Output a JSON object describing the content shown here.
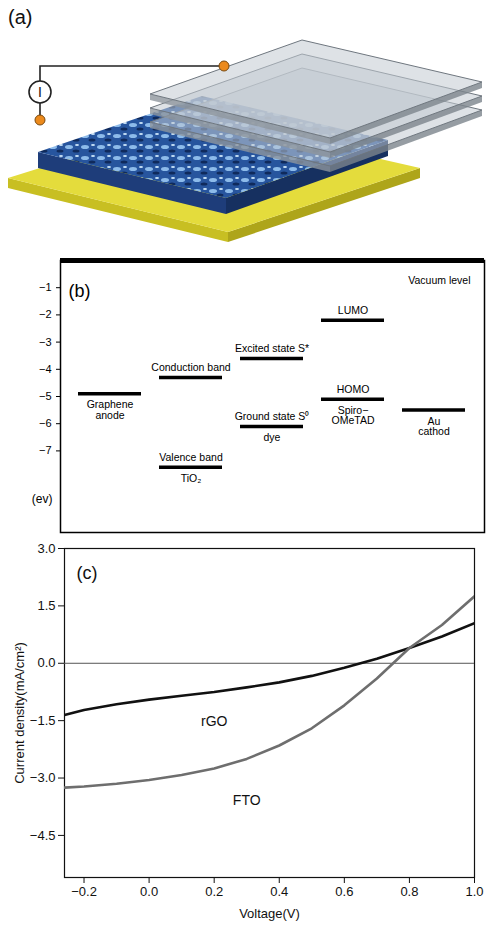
{
  "illustration": {
    "panel": "(a)",
    "meter_symbol": "I"
  },
  "chart_data": [
    {
      "panel": "(b)",
      "type": "energy_levels",
      "y_label": "(ev)",
      "ylim": [
        -10,
        0
      ],
      "yticks": [
        -1,
        -2,
        -3,
        -4,
        -5,
        -6,
        -7
      ],
      "vacuum_level": {
        "label": "Vacuum level",
        "value": 0
      },
      "columns": [
        {
          "label": "Graphene\nanode",
          "levels": [
            {
              "value": -4.9
            }
          ]
        },
        {
          "label": "TiO₂",
          "levels": [
            {
              "name": "Conduction band",
              "value": -4.3
            },
            {
              "name": "Valence band",
              "value": -7.6
            }
          ]
        },
        {
          "label": "dye",
          "levels": [
            {
              "name": "Excited state S*",
              "value": -3.6
            },
            {
              "name": "Ground state S⁰",
              "value": -6.1
            }
          ]
        },
        {
          "label": "Spiro−\nOMeTAD",
          "levels": [
            {
              "name": "LUMO",
              "value": -2.2
            },
            {
              "name": "HOMO",
              "value": -5.1
            }
          ]
        },
        {
          "label": "Au\ncathod",
          "levels": [
            {
              "value": -5.5
            }
          ]
        }
      ]
    },
    {
      "panel": "(c)",
      "type": "line",
      "x_label": "Voltage(V)",
      "y_label": "Current density(mA/cm²)",
      "xlim": [
        -0.26,
        1.0
      ],
      "xticks": [
        {
          "value": -0.2,
          "label": "−0.2"
        },
        {
          "value": 0.0,
          "label": "0.0"
        },
        {
          "value": 0.2,
          "label": "0.2"
        },
        {
          "value": 0.4,
          "label": "0.4"
        },
        {
          "value": 0.6,
          "label": "0.6"
        },
        {
          "value": 0.8,
          "label": "0.8"
        },
        {
          "value": 1.0,
          "label": "1.0"
        }
      ],
      "ylim": [
        -5.6,
        3.0
      ],
      "yticks": [
        {
          "value": 3.0,
          "label": "3.0"
        },
        {
          "value": 1.5,
          "label": "1.5"
        },
        {
          "value": 0.0,
          "label": "0.0"
        },
        {
          "value": -1.5,
          "label": "−1.5"
        },
        {
          "value": -3.0,
          "label": "−3.0"
        },
        {
          "value": -4.5,
          "label": "−4.5"
        }
      ],
      "grid": false,
      "x": [
        -0.26,
        -0.2,
        -0.1,
        0.0,
        0.1,
        0.2,
        0.3,
        0.4,
        0.5,
        0.6,
        0.7,
        0.8,
        0.9,
        1.0
      ],
      "series": [
        {
          "name": "rGO",
          "color": "#111111",
          "values": [
            -1.35,
            -1.22,
            -1.07,
            -0.95,
            -0.85,
            -0.75,
            -0.63,
            -0.5,
            -0.33,
            -0.12,
            0.12,
            0.4,
            0.7,
            1.05
          ]
        },
        {
          "name": "FTO",
          "color": "#6e6e6e",
          "values": [
            -3.25,
            -3.22,
            -3.15,
            -3.05,
            -2.92,
            -2.75,
            -2.5,
            -2.15,
            -1.7,
            -1.1,
            -0.4,
            0.4,
            1.0,
            1.75
          ]
        }
      ]
    }
  ]
}
